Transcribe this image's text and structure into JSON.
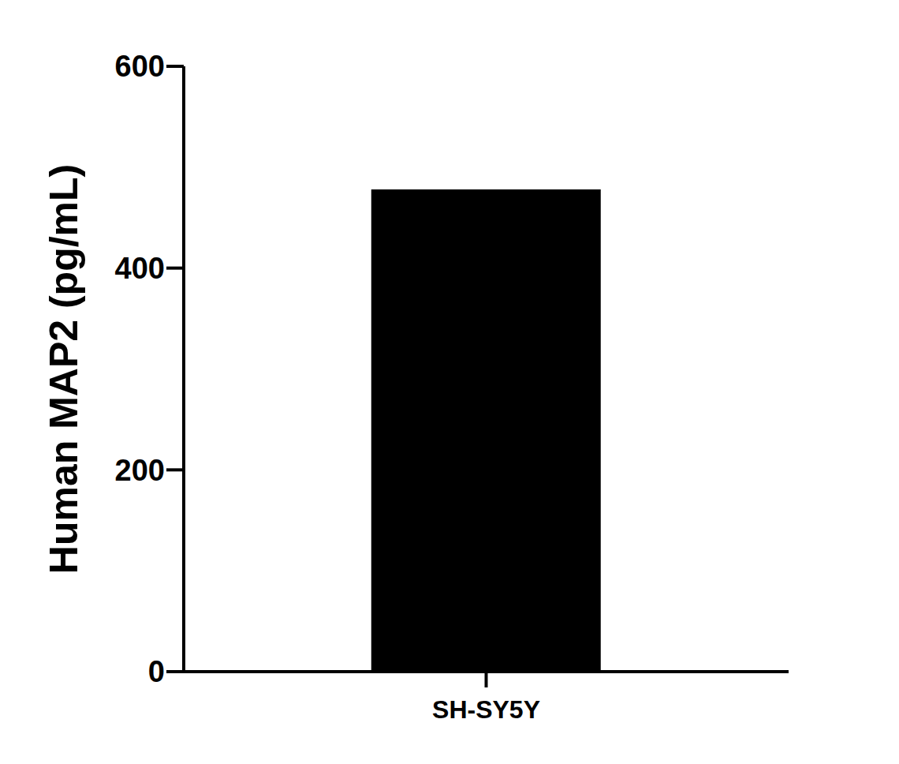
{
  "chart_data": {
    "type": "bar",
    "categories": [
      "SH-SY5Y"
    ],
    "values": [
      478
    ],
    "color": "#000000",
    "ylabel": "Human MAP2 (pg/mL)",
    "ylim": [
      0,
      600
    ],
    "yticks": [
      0,
      200,
      400,
      600
    ],
    "grid": false
  }
}
